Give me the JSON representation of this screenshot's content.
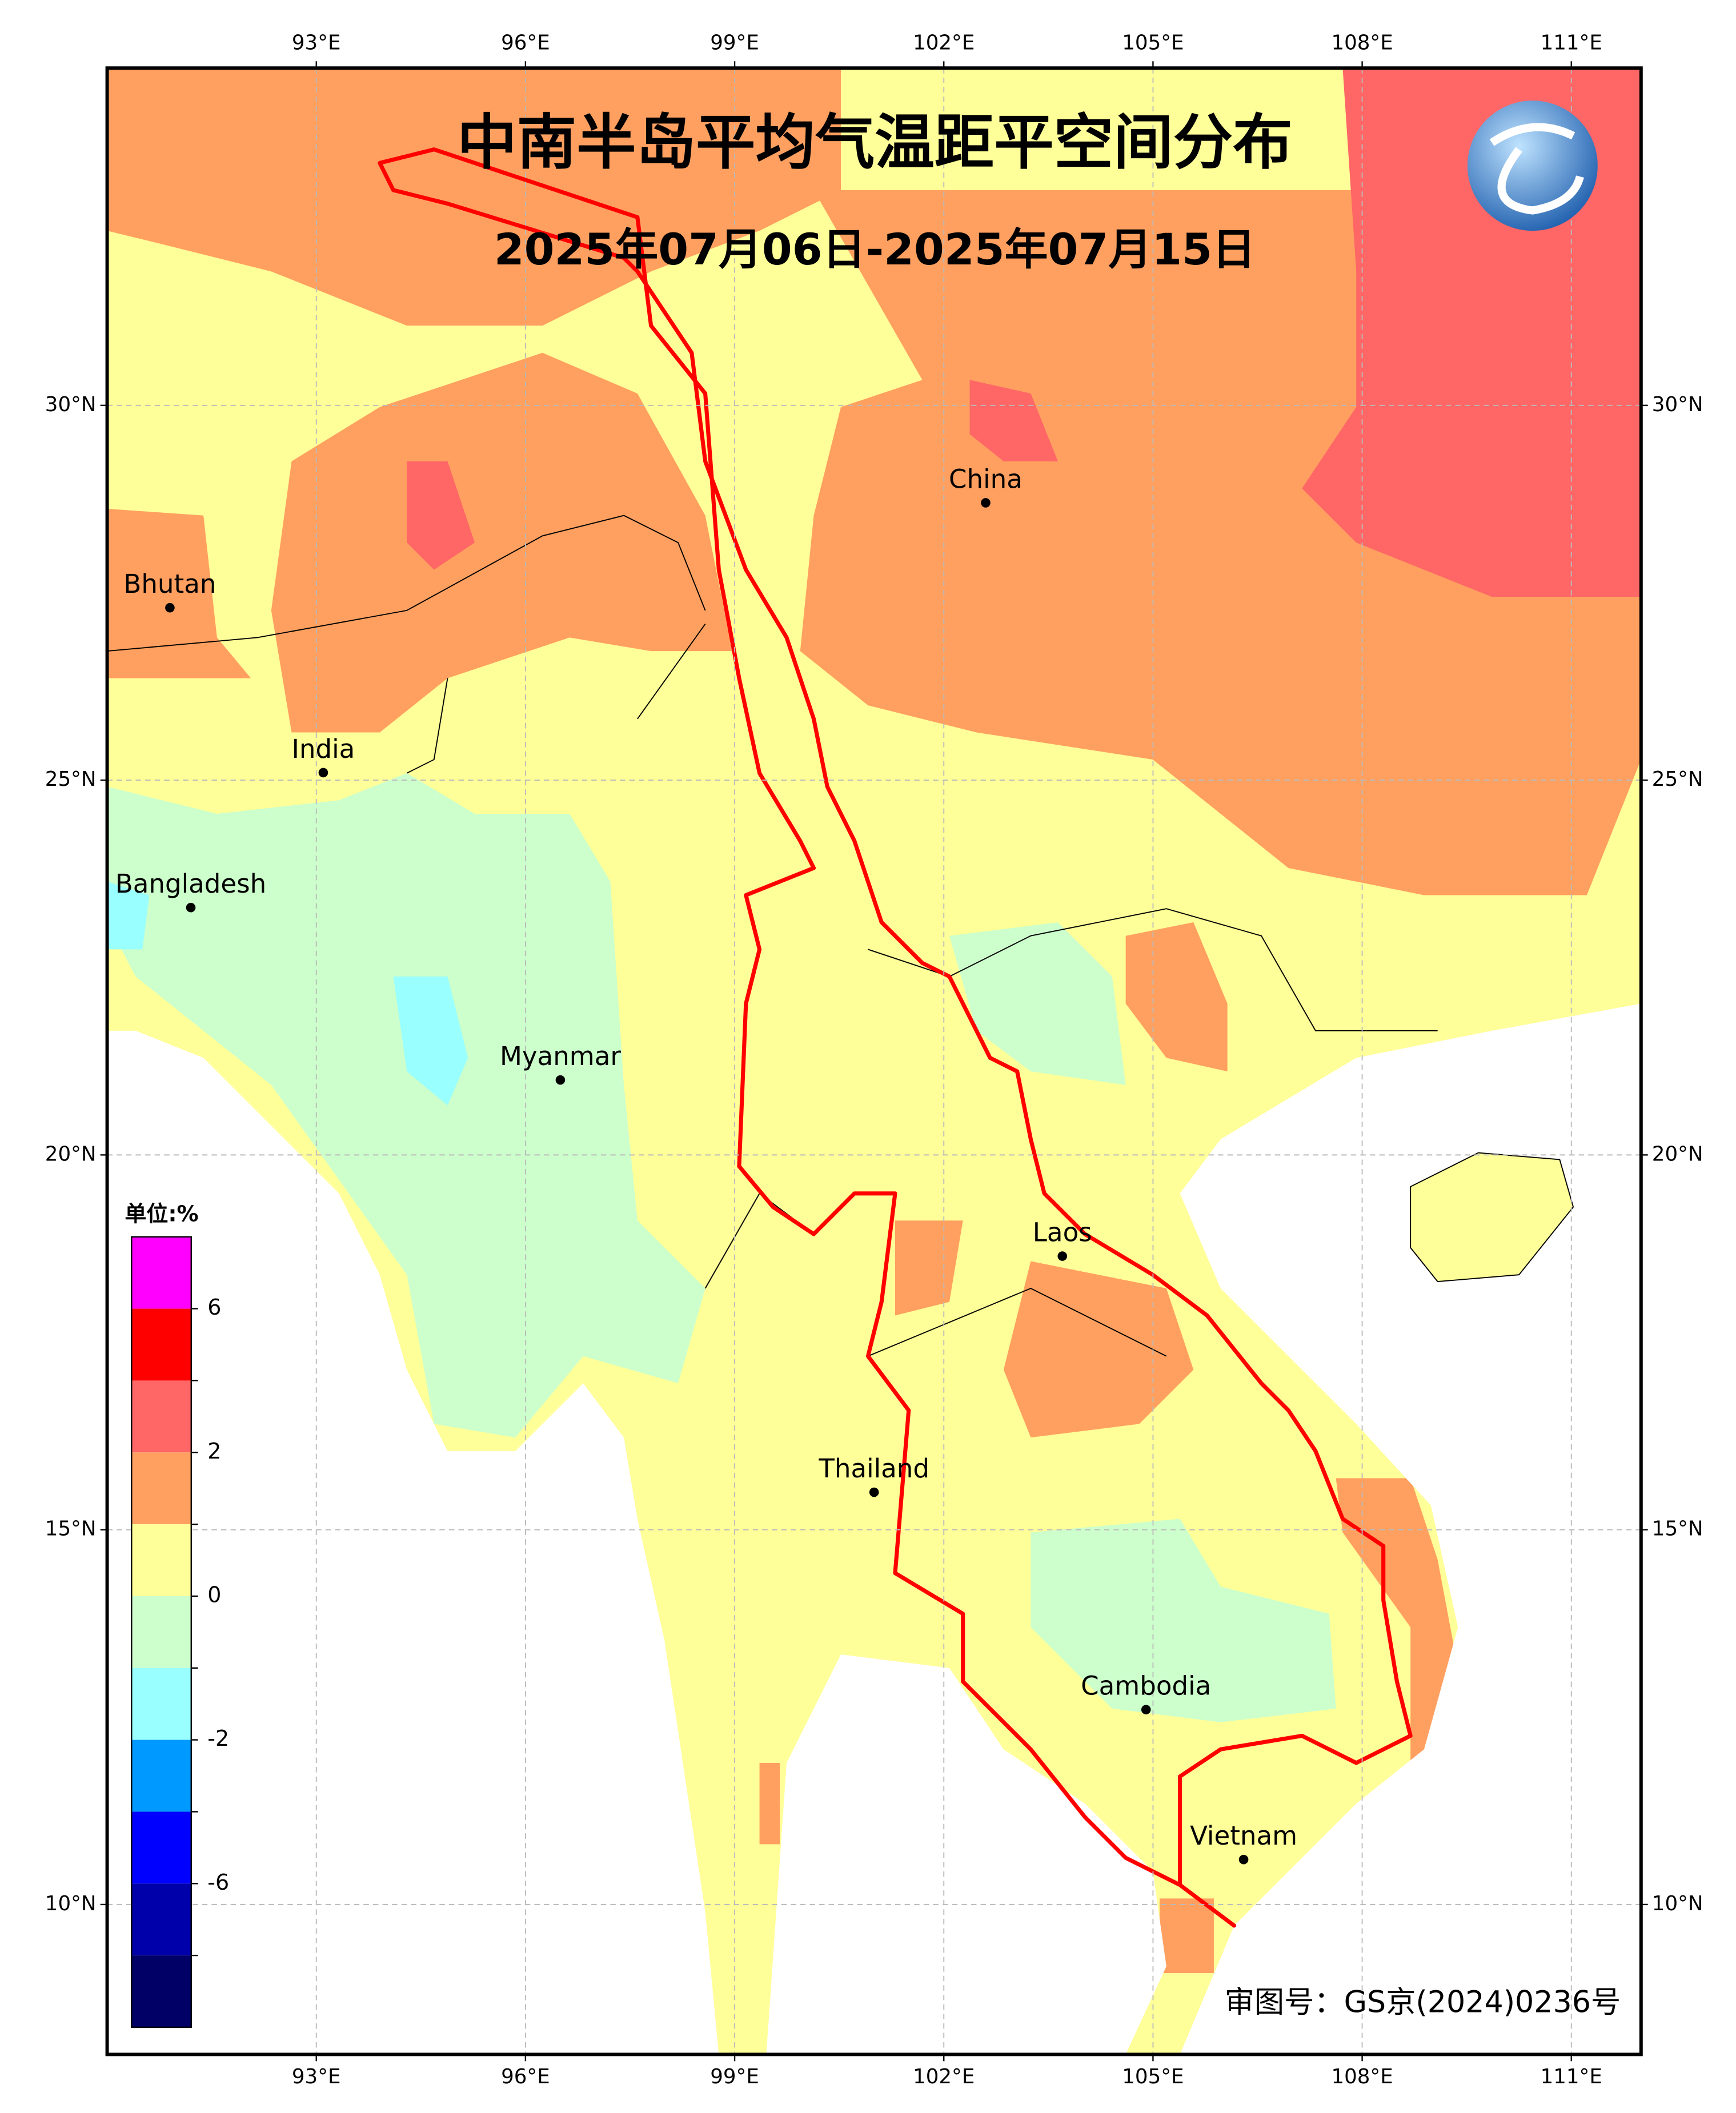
{
  "map": {
    "title": "中南半岛平均气温距平空间分布",
    "subtitle": "2025年07月06日-2025年07月15日",
    "xlim": [
      90,
      112
    ],
    "ylim": [
      8,
      34.5
    ],
    "xticks": [
      {
        "value": 93,
        "label": "93°E"
      },
      {
        "value": 96,
        "label": "96°E"
      },
      {
        "value": 99,
        "label": "99°E"
      },
      {
        "value": 102,
        "label": "102°E"
      },
      {
        "value": 105,
        "label": "105°E"
      },
      {
        "value": 108,
        "label": "108°E"
      },
      {
        "value": 111,
        "label": "111°E"
      }
    ],
    "yticks": [
      {
        "value": 10,
        "label": "10°N"
      },
      {
        "value": 15,
        "label": "15°N"
      },
      {
        "value": 20,
        "label": "20°N"
      },
      {
        "value": 25,
        "label": "25°N"
      },
      {
        "value": 30,
        "label": "30°N"
      }
    ],
    "grid": true,
    "places": [
      {
        "name": "China",
        "lon": 102.6,
        "lat": 28.7
      },
      {
        "name": "Bhutan",
        "lon": 90.9,
        "lat": 27.3
      },
      {
        "name": "India",
        "lon": 93.1,
        "lat": 25.1
      },
      {
        "name": "Bangladesh",
        "lon": 91.2,
        "lat": 23.3
      },
      {
        "name": "Myanmar",
        "lon": 96.5,
        "lat": 21.0
      },
      {
        "name": "Laos",
        "lon": 103.7,
        "lat": 18.65
      },
      {
        "name": "Thailand",
        "lon": 101.0,
        "lat": 15.5
      },
      {
        "name": "Cambodia",
        "lon": 104.9,
        "lat": 12.6
      },
      {
        "name": "Vietnam",
        "lon": 106.3,
        "lat": 10.6
      }
    ],
    "colorbar": {
      "unit": "单位:%",
      "colors": [
        "#ff00ff",
        "#ff0000",
        "#ff6666",
        "#ffa060",
        "#ffff99",
        "#ccffcc",
        "#99ffff",
        "#0099ff",
        "#0000ff",
        "#0000aa",
        "#000066"
      ],
      "ticks": [
        6,
        2,
        0,
        -2,
        -6
      ]
    },
    "credit": "审图号：GS京(2024)0236号"
  }
}
